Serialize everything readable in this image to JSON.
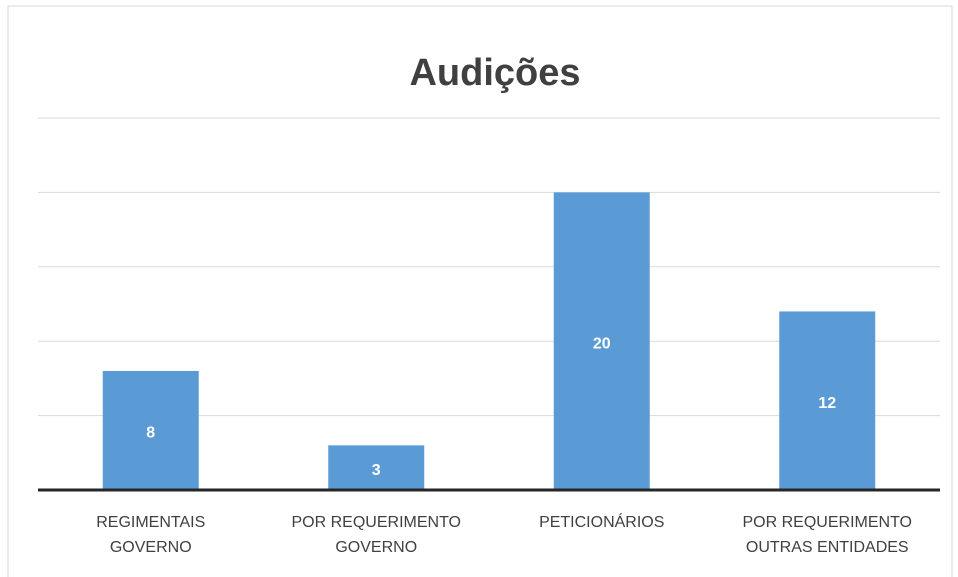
{
  "chart_data": {
    "type": "bar",
    "title": "Audições",
    "categories": [
      "REGIMENTAIS GOVERNO",
      "POR REQUERIMENTO GOVERNO",
      "PETICIONÁRIOS",
      "POR REQUERIMENTO OUTRAS ENTIDADES"
    ],
    "values": [
      8,
      3,
      20,
      12
    ],
    "color": "#5b9bd5",
    "ylim": [
      0,
      25
    ],
    "yticks": [
      0,
      5,
      10,
      15,
      20,
      25
    ],
    "grid": true
  }
}
